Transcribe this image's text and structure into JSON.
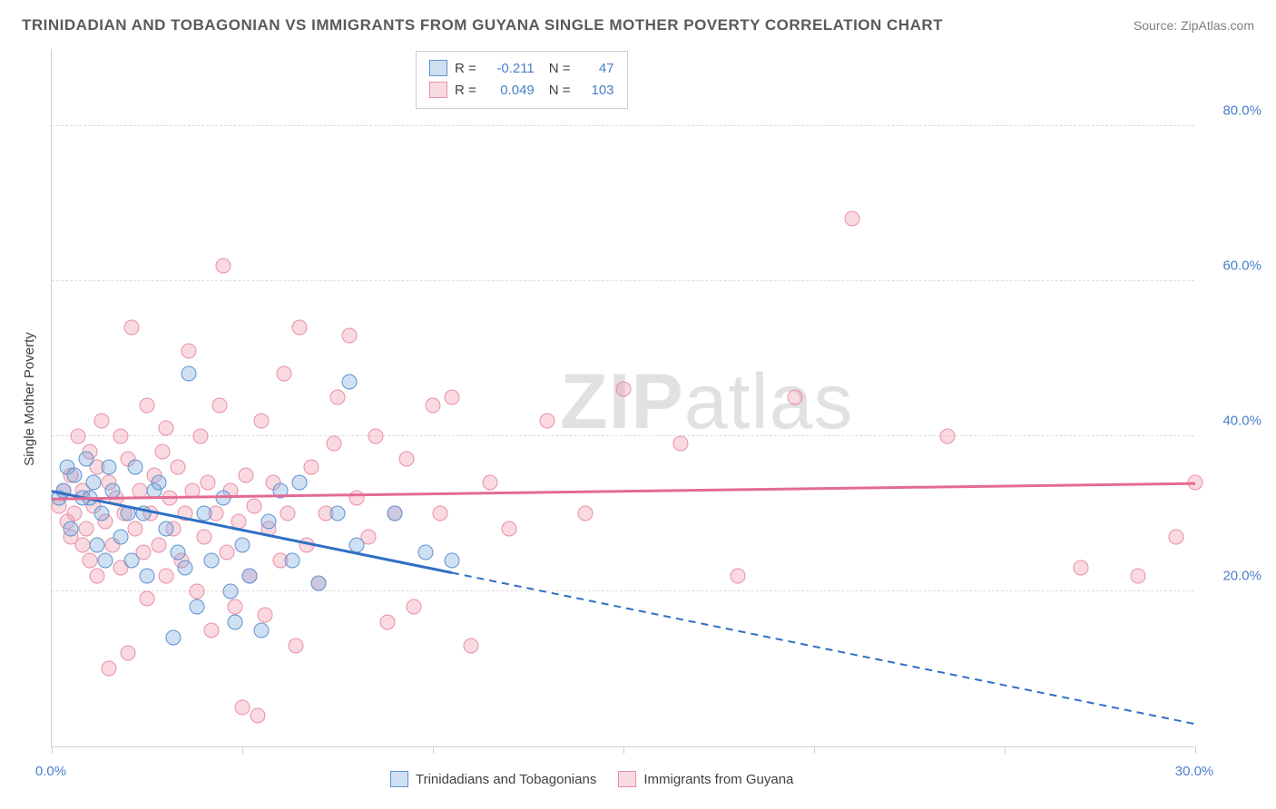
{
  "title": "TRINIDADIAN AND TOBAGONIAN VS IMMIGRANTS FROM GUYANA SINGLE MOTHER POVERTY CORRELATION CHART",
  "source": "Source: ZipAtlas.com",
  "watermark": {
    "bold": "ZIP",
    "rest": "atlas"
  },
  "chart": {
    "type": "scatter",
    "ylabel": "Single Mother Poverty",
    "xlim": [
      0,
      30
    ],
    "ylim": [
      0,
      90
    ],
    "xticks": [
      0,
      5,
      10,
      15,
      20,
      25,
      30
    ],
    "xtick_labels": {
      "0": "0.0%",
      "30": "30.0%"
    },
    "yticks": [
      20,
      40,
      60,
      80
    ],
    "ytick_labels": [
      "20.0%",
      "40.0%",
      "60.0%",
      "80.0%"
    ],
    "background_color": "#ffffff",
    "grid_color": "#dcdcdc",
    "axis_color": "#cfcfcf",
    "tick_label_color": "#4a7ec9",
    "point_radius": 8.5,
    "series": [
      {
        "name": "Trinidadians and Tobagonians",
        "fill": "rgba(120,165,220,0.35)",
        "stroke": "#5e93cf",
        "trend_color": "#2f6fc4",
        "r": "-0.211",
        "n": "47",
        "trend": {
          "x1": 0,
          "y1": 33,
          "x2": 30,
          "y2": 3,
          "solid_until_x": 10.5
        },
        "points": [
          [
            0.2,
            32
          ],
          [
            0.3,
            33
          ],
          [
            0.4,
            36
          ],
          [
            0.5,
            28
          ],
          [
            0.6,
            35
          ],
          [
            0.8,
            32
          ],
          [
            0.9,
            37
          ],
          [
            1.0,
            32
          ],
          [
            1.1,
            34
          ],
          [
            1.2,
            26
          ],
          [
            1.3,
            30
          ],
          [
            1.4,
            24
          ],
          [
            1.5,
            36
          ],
          [
            1.6,
            33
          ],
          [
            1.8,
            27
          ],
          [
            2.0,
            30
          ],
          [
            2.1,
            24
          ],
          [
            2.2,
            36
          ],
          [
            2.4,
            30
          ],
          [
            2.5,
            22
          ],
          [
            2.7,
            33
          ],
          [
            2.8,
            34
          ],
          [
            3.0,
            28
          ],
          [
            3.2,
            14
          ],
          [
            3.3,
            25
          ],
          [
            3.5,
            23
          ],
          [
            3.6,
            48
          ],
          [
            3.8,
            18
          ],
          [
            4.0,
            30
          ],
          [
            4.2,
            24
          ],
          [
            4.5,
            32
          ],
          [
            4.7,
            20
          ],
          [
            4.8,
            16
          ],
          [
            5.0,
            26
          ],
          [
            5.2,
            22
          ],
          [
            5.5,
            15
          ],
          [
            5.7,
            29
          ],
          [
            6.0,
            33
          ],
          [
            6.3,
            24
          ],
          [
            6.5,
            34
          ],
          [
            7.0,
            21
          ],
          [
            7.5,
            30
          ],
          [
            7.8,
            47
          ],
          [
            8.0,
            26
          ],
          [
            9.0,
            30
          ],
          [
            9.8,
            25
          ],
          [
            10.5,
            24
          ]
        ]
      },
      {
        "name": "Immigrants from Guyana",
        "fill": "rgba(240,150,170,0.35)",
        "stroke": "#e98fa6",
        "trend_color": "#e36b93",
        "r": "0.049",
        "n": "103",
        "trend": {
          "x1": 0,
          "y1": 32,
          "x2": 30,
          "y2": 34,
          "solid_until_x": 30
        },
        "points": [
          [
            0.2,
            31
          ],
          [
            0.3,
            33
          ],
          [
            0.4,
            29
          ],
          [
            0.5,
            35
          ],
          [
            0.5,
            27
          ],
          [
            0.6,
            30
          ],
          [
            0.7,
            40
          ],
          [
            0.8,
            26
          ],
          [
            0.8,
            33
          ],
          [
            0.9,
            28
          ],
          [
            1.0,
            38
          ],
          [
            1.0,
            24
          ],
          [
            1.1,
            31
          ],
          [
            1.2,
            22
          ],
          [
            1.2,
            36
          ],
          [
            1.3,
            42
          ],
          [
            1.4,
            29
          ],
          [
            1.5,
            34
          ],
          [
            1.5,
            10
          ],
          [
            1.6,
            26
          ],
          [
            1.7,
            32
          ],
          [
            1.8,
            40
          ],
          [
            1.8,
            23
          ],
          [
            1.9,
            30
          ],
          [
            2.0,
            37
          ],
          [
            2.0,
            12
          ],
          [
            2.1,
            54
          ],
          [
            2.2,
            28
          ],
          [
            2.3,
            33
          ],
          [
            2.4,
            25
          ],
          [
            2.5,
            44
          ],
          [
            2.5,
            19
          ],
          [
            2.6,
            30
          ],
          [
            2.7,
            35
          ],
          [
            2.8,
            26
          ],
          [
            2.9,
            38
          ],
          [
            3.0,
            22
          ],
          [
            3.0,
            41
          ],
          [
            3.1,
            32
          ],
          [
            3.2,
            28
          ],
          [
            3.3,
            36
          ],
          [
            3.4,
            24
          ],
          [
            3.5,
            30
          ],
          [
            3.6,
            51
          ],
          [
            3.7,
            33
          ],
          [
            3.8,
            20
          ],
          [
            3.9,
            40
          ],
          [
            4.0,
            27
          ],
          [
            4.1,
            34
          ],
          [
            4.2,
            15
          ],
          [
            4.3,
            30
          ],
          [
            4.4,
            44
          ],
          [
            4.5,
            62
          ],
          [
            4.6,
            25
          ],
          [
            4.7,
            33
          ],
          [
            4.8,
            18
          ],
          [
            4.9,
            29
          ],
          [
            5.0,
            5
          ],
          [
            5.1,
            35
          ],
          [
            5.2,
            22
          ],
          [
            5.3,
            31
          ],
          [
            5.4,
            4
          ],
          [
            5.5,
            42
          ],
          [
            5.6,
            17
          ],
          [
            5.7,
            28
          ],
          [
            5.8,
            34
          ],
          [
            6.0,
            24
          ],
          [
            6.1,
            48
          ],
          [
            6.2,
            30
          ],
          [
            6.4,
            13
          ],
          [
            6.5,
            54
          ],
          [
            6.7,
            26
          ],
          [
            6.8,
            36
          ],
          [
            7.0,
            21
          ],
          [
            7.2,
            30
          ],
          [
            7.4,
            39
          ],
          [
            7.5,
            45
          ],
          [
            7.8,
            53
          ],
          [
            8.0,
            32
          ],
          [
            8.3,
            27
          ],
          [
            8.5,
            40
          ],
          [
            8.8,
            16
          ],
          [
            9.0,
            30
          ],
          [
            9.3,
            37
          ],
          [
            9.5,
            18
          ],
          [
            10.0,
            44
          ],
          [
            10.2,
            30
          ],
          [
            10.5,
            45
          ],
          [
            11.0,
            13
          ],
          [
            11.5,
            34
          ],
          [
            12.0,
            28
          ],
          [
            13.0,
            42
          ],
          [
            14.0,
            30
          ],
          [
            15.0,
            46
          ],
          [
            16.5,
            39
          ],
          [
            18.0,
            22
          ],
          [
            19.5,
            45
          ],
          [
            21.0,
            68
          ],
          [
            23.5,
            40
          ],
          [
            27.0,
            23
          ],
          [
            28.5,
            22
          ],
          [
            29.5,
            27
          ],
          [
            30.0,
            34
          ]
        ]
      }
    ],
    "legend_top": {
      "r_label": "R =",
      "n_label": "N ="
    },
    "legend_bottom_labels": [
      "Trinidadians and Tobagonians",
      "Immigrants from Guyana"
    ]
  }
}
